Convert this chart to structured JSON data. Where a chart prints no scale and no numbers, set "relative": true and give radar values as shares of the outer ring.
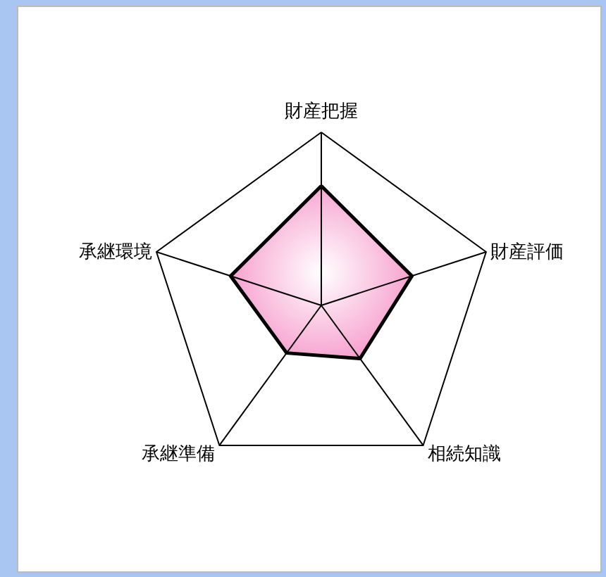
{
  "chart_data": {
    "type": "radar",
    "relative": true,
    "categories": [
      "財産把握",
      "財産評価",
      "相続知識",
      "承継準備",
      "承継環境"
    ],
    "series": [
      {
        "color": "#f7a1cf",
        "values": [
          0.69,
          0.55,
          0.38,
          0.34,
          0.55
        ]
      }
    ]
  }
}
